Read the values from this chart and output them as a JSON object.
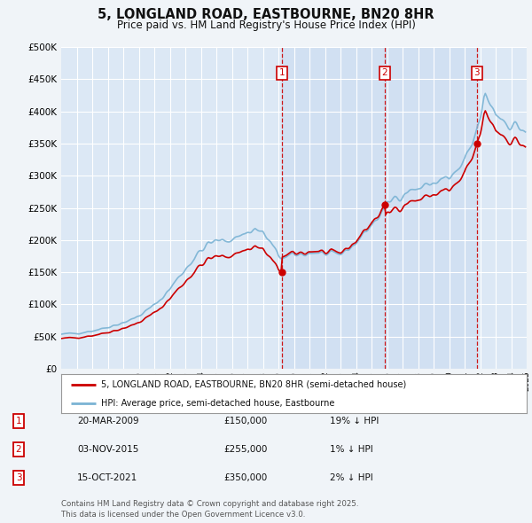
{
  "title": "5, LONGLAND ROAD, EASTBOURNE, BN20 8HR",
  "subtitle": "Price paid vs. HM Land Registry's House Price Index (HPI)",
  "red_label": "5, LONGLAND ROAD, EASTBOURNE, BN20 8HR (semi-detached house)",
  "blue_label": "HPI: Average price, semi-detached house, Eastbourne",
  "footnote": "Contains HM Land Registry data © Crown copyright and database right 2025.\nThis data is licensed under the Open Government Licence v3.0.",
  "sales": [
    {
      "num": 1,
      "date": "20-MAR-2009",
      "price": 150000,
      "pct": "19% ↓ HPI"
    },
    {
      "num": 2,
      "date": "03-NOV-2015",
      "price": 255000,
      "pct": "1% ↓ HPI"
    },
    {
      "num": 3,
      "date": "15-OCT-2021",
      "price": 350000,
      "pct": "2% ↓ HPI"
    }
  ],
  "sale_years": [
    2009.22,
    2015.84,
    2021.79
  ],
  "sale_prices": [
    150000,
    255000,
    350000
  ],
  "ylim": [
    0,
    500000
  ],
  "yticks": [
    0,
    50000,
    100000,
    150000,
    200000,
    250000,
    300000,
    350000,
    400000,
    450000,
    500000
  ],
  "background_color": "#f0f4f8",
  "plot_bg": "#dce8f5",
  "shade_bg": "#c8daf0",
  "grid_color": "#ffffff",
  "red_color": "#cc0000",
  "blue_color": "#7ab3d4",
  "vline_color": "#cc0000",
  "title_fontsize": 10.5,
  "subtitle_fontsize": 8.5
}
